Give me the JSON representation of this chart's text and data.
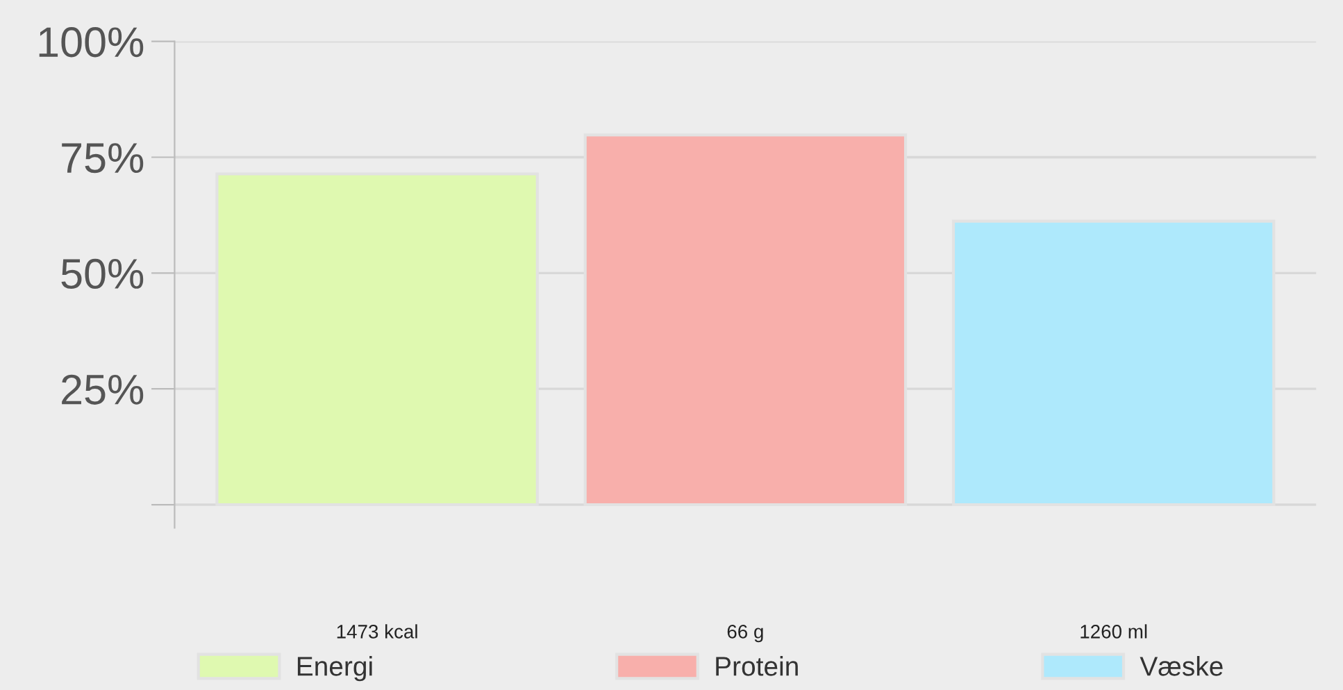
{
  "chart_data": {
    "type": "bar",
    "categories": [
      "1473 kcal",
      "66 g",
      "1260 ml"
    ],
    "series": [
      {
        "name": "Energi",
        "color": "#dff9b0",
        "values": [
          71.4,
          null,
          null
        ]
      },
      {
        "name": "Protein",
        "color": "#f8afab",
        "values": [
          null,
          79.8,
          null
        ]
      },
      {
        "name": "Væske",
        "color": "#aee9fc",
        "values": [
          null,
          null,
          61.2
        ]
      }
    ],
    "ylim": [
      -5,
      100
    ],
    "yticks": [
      {
        "value": 0,
        "label": null
      },
      {
        "value": 25,
        "label": "25%"
      },
      {
        "value": 50,
        "label": "50%"
      },
      {
        "value": 75,
        "label": "75%"
      },
      {
        "value": 100,
        "label": "100%"
      }
    ],
    "grid": "y",
    "legend": "bottom"
  }
}
